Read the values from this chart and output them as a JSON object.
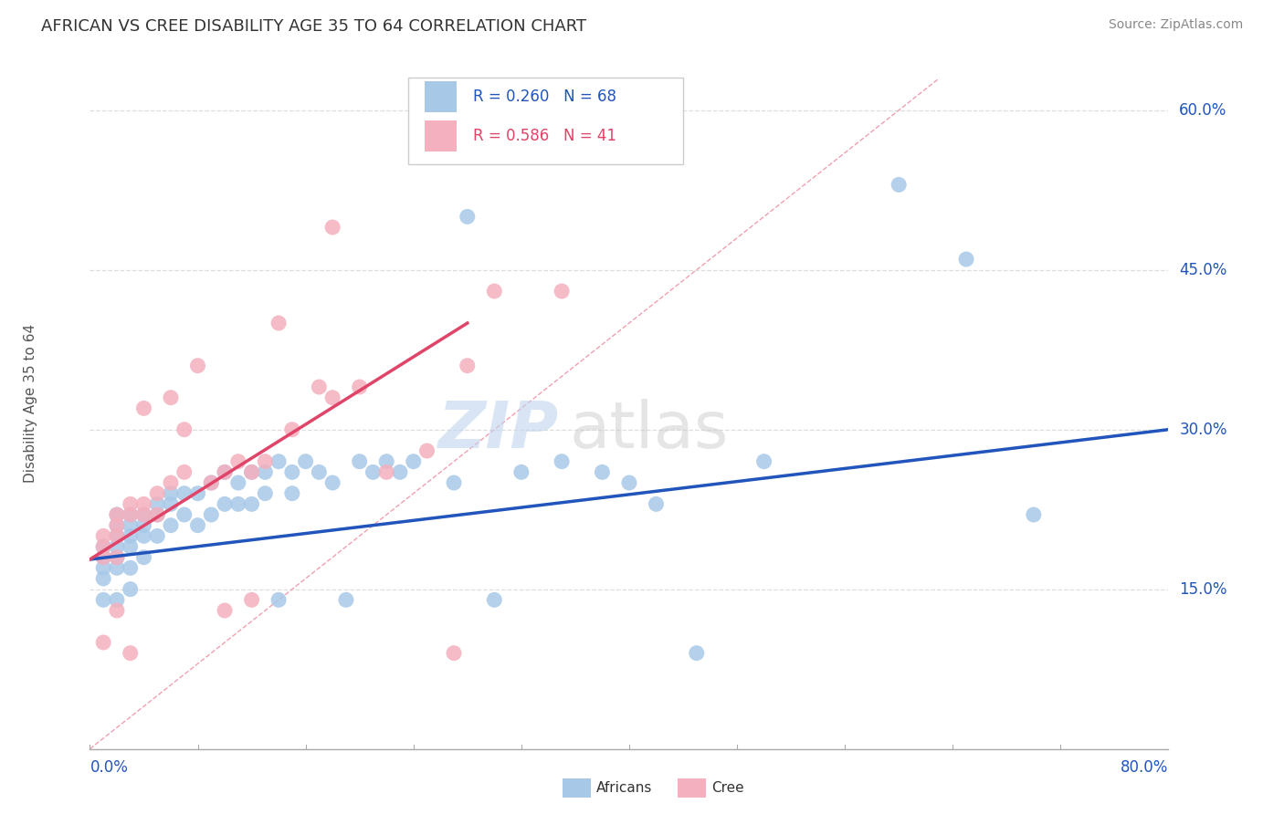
{
  "title": "AFRICAN VS CREE DISABILITY AGE 35 TO 64 CORRELATION CHART",
  "source": "Source: ZipAtlas.com",
  "ylabel": "Disability Age 35 to 64",
  "xlim": [
    0.0,
    0.8
  ],
  "ylim": [
    0.0,
    0.65
  ],
  "africans_R": 0.26,
  "africans_N": 68,
  "cree_R": 0.586,
  "cree_N": 41,
  "africans_color": "#a8c8e8",
  "cree_color": "#f4b0be",
  "africans_line_color": "#2255bb",
  "cree_line_color": "#e04468",
  "diagonal_color": "#f0a0b0",
  "watermark_zip": "ZIP",
  "watermark_atlas": "atlas",
  "bg_color": "#ffffff",
  "grid_color": "#dddddd",
  "ytick_vals": [
    0.0,
    0.15,
    0.3,
    0.45,
    0.6
  ],
  "ytick_labels": [
    "",
    "15.0%",
    "30.0%",
    "45.0%",
    "60.0%"
  ],
  "africans_trend_x": [
    0.0,
    0.8
  ],
  "africans_trend_y": [
    0.178,
    0.3
  ],
  "cree_trend_x": [
    0.0,
    0.28
  ],
  "cree_trend_y": [
    0.178,
    0.4
  ],
  "africans_x": [
    0.01,
    0.01,
    0.01,
    0.01,
    0.01,
    0.02,
    0.02,
    0.02,
    0.02,
    0.02,
    0.02,
    0.02,
    0.03,
    0.03,
    0.03,
    0.03,
    0.03,
    0.03,
    0.04,
    0.04,
    0.04,
    0.04,
    0.05,
    0.05,
    0.05,
    0.06,
    0.06,
    0.06,
    0.07,
    0.07,
    0.08,
    0.08,
    0.09,
    0.09,
    0.1,
    0.1,
    0.11,
    0.11,
    0.12,
    0.12,
    0.13,
    0.13,
    0.14,
    0.14,
    0.15,
    0.15,
    0.16,
    0.17,
    0.18,
    0.19,
    0.2,
    0.21,
    0.22,
    0.23,
    0.24,
    0.27,
    0.28,
    0.3,
    0.32,
    0.35,
    0.38,
    0.4,
    0.42,
    0.45,
    0.5,
    0.6,
    0.65,
    0.7
  ],
  "africans_y": [
    0.19,
    0.18,
    0.17,
    0.16,
    0.14,
    0.22,
    0.21,
    0.2,
    0.19,
    0.18,
    0.17,
    0.14,
    0.22,
    0.21,
    0.2,
    0.19,
    0.17,
    0.15,
    0.22,
    0.21,
    0.2,
    0.18,
    0.23,
    0.22,
    0.2,
    0.24,
    0.23,
    0.21,
    0.24,
    0.22,
    0.24,
    0.21,
    0.25,
    0.22,
    0.26,
    0.23,
    0.25,
    0.23,
    0.26,
    0.23,
    0.26,
    0.24,
    0.27,
    0.14,
    0.26,
    0.24,
    0.27,
    0.26,
    0.25,
    0.14,
    0.27,
    0.26,
    0.27,
    0.26,
    0.27,
    0.25,
    0.5,
    0.14,
    0.26,
    0.27,
    0.26,
    0.25,
    0.23,
    0.09,
    0.27,
    0.53,
    0.46,
    0.22
  ],
  "cree_x": [
    0.01,
    0.01,
    0.01,
    0.01,
    0.02,
    0.02,
    0.02,
    0.02,
    0.02,
    0.03,
    0.03,
    0.03,
    0.04,
    0.04,
    0.04,
    0.05,
    0.05,
    0.06,
    0.06,
    0.07,
    0.07,
    0.08,
    0.09,
    0.1,
    0.11,
    0.12,
    0.13,
    0.14,
    0.15,
    0.17,
    0.18,
    0.2,
    0.22,
    0.25,
    0.27,
    0.28,
    0.3,
    0.35,
    0.18,
    0.1,
    0.12
  ],
  "cree_y": [
    0.2,
    0.19,
    0.18,
    0.1,
    0.22,
    0.21,
    0.2,
    0.18,
    0.13,
    0.23,
    0.22,
    0.09,
    0.23,
    0.22,
    0.32,
    0.24,
    0.22,
    0.25,
    0.33,
    0.26,
    0.3,
    0.36,
    0.25,
    0.13,
    0.27,
    0.26,
    0.27,
    0.4,
    0.3,
    0.34,
    0.49,
    0.34,
    0.26,
    0.28,
    0.09,
    0.36,
    0.43,
    0.43,
    0.33,
    0.26,
    0.14
  ]
}
